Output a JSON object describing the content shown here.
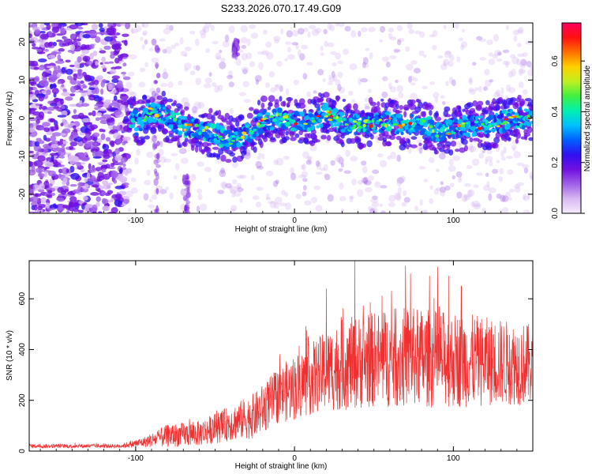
{
  "figure": {
    "title": "S233.2026.070.17.49.G09"
  },
  "chart_data": [
    {
      "type": "heatmap",
      "title": "S233.2026.070.17.49.G09",
      "xlabel": "Height of straight line (km)",
      "ylabel": "Frequency (Hz)",
      "xlim": [
        -167,
        150
      ],
      "ylim": [
        -25,
        25
      ],
      "xticks": [
        -100,
        0,
        100
      ],
      "yticks": [
        -20,
        -10,
        0,
        10,
        20
      ],
      "colorbar": {
        "label": "Normalized spectral amplitude",
        "range": [
          0.0,
          0.75
        ],
        "ticks": [
          0.0,
          0.2,
          0.4,
          0.6
        ],
        "colormap": [
          "#f4ecfc",
          "#d8b8f2",
          "#a060e8",
          "#7010e0",
          "#3010f0",
          "#0060ff",
          "#00c0ff",
          "#00f0b0",
          "#40f040",
          "#c0f020",
          "#ffd000",
          "#ff7000",
          "#ff1010",
          "#ff0060"
        ]
      },
      "ridge": [
        {
          "x": -100,
          "y": -2
        },
        {
          "x": -95,
          "y": 0
        },
        {
          "x": -90,
          "y": 2
        },
        {
          "x": -80,
          "y": 0
        },
        {
          "x": -70,
          "y": -2
        },
        {
          "x": -60,
          "y": -3
        },
        {
          "x": -50,
          "y": -4
        },
        {
          "x": -40,
          "y": -6
        },
        {
          "x": -30,
          "y": -4
        },
        {
          "x": -20,
          "y": -1
        },
        {
          "x": -10,
          "y": 0
        },
        {
          "x": 0,
          "y": -1
        },
        {
          "x": 10,
          "y": -1
        },
        {
          "x": 20,
          "y": 1
        },
        {
          "x": 30,
          "y": -1
        },
        {
          "x": 40,
          "y": -2
        },
        {
          "x": 50,
          "y": -1
        },
        {
          "x": 60,
          "y": -1
        },
        {
          "x": 70,
          "y": -2
        },
        {
          "x": 80,
          "y": -1
        },
        {
          "x": 90,
          "y": -4
        },
        {
          "x": 100,
          "y": -3
        },
        {
          "x": 110,
          "y": -2
        },
        {
          "x": 120,
          "y": -2
        },
        {
          "x": 130,
          "y": -1
        },
        {
          "x": 140,
          "y": 0
        },
        {
          "x": 150,
          "y": 0
        }
      ],
      "noise_until_x": -105,
      "vertical_streaks": [
        {
          "x": -68,
          "y_range": [
            -25,
            -15
          ]
        },
        {
          "x": -37,
          "y_range": [
            16,
            21
          ]
        },
        {
          "x": -87,
          "y_range": [
            -25,
            22
          ]
        }
      ]
    },
    {
      "type": "line",
      "xlabel": "Height of straight line (km)",
      "ylabel": "SNR (10 * v/v)",
      "xlim": [
        -167,
        150
      ],
      "ylim": [
        0,
        750
      ],
      "xticks": [
        -100,
        0,
        100
      ],
      "yticks": [
        0,
        200,
        400,
        600
      ],
      "series": [
        {
          "name": "SNR",
          "color": "#f03030",
          "envelope": [
            {
              "x": -167,
              "mean": 20,
              "amp": 8
            },
            {
              "x": -110,
              "mean": 20,
              "amp": 8
            },
            {
              "x": -95,
              "mean": 35,
              "amp": 20
            },
            {
              "x": -80,
              "mean": 60,
              "amp": 45
            },
            {
              "x": -60,
              "mean": 70,
              "amp": 50
            },
            {
              "x": -40,
              "mean": 110,
              "amp": 70
            },
            {
              "x": -25,
              "mean": 140,
              "amp": 90
            },
            {
              "x": -10,
              "mean": 220,
              "amp": 110
            },
            {
              "x": 0,
              "mean": 250,
              "amp": 130
            },
            {
              "x": 15,
              "mean": 300,
              "amp": 150
            },
            {
              "x": 30,
              "mean": 340,
              "amp": 180
            },
            {
              "x": 50,
              "mean": 360,
              "amp": 190
            },
            {
              "x": 70,
              "mean": 370,
              "amp": 200
            },
            {
              "x": 100,
              "mean": 360,
              "amp": 190
            },
            {
              "x": 130,
              "mean": 350,
              "amp": 170
            },
            {
              "x": 150,
              "mean": 340,
              "amp": 160
            }
          ],
          "peaks": [
            {
              "x": 38,
              "y": 750
            },
            {
              "x": 73,
              "y": 700
            },
            {
              "x": 85,
              "y": 690
            },
            {
              "x": 97,
              "y": 690
            },
            {
              "x": 20,
              "y": 640
            },
            {
              "x": 105,
              "y": 650
            }
          ]
        }
      ]
    }
  ]
}
